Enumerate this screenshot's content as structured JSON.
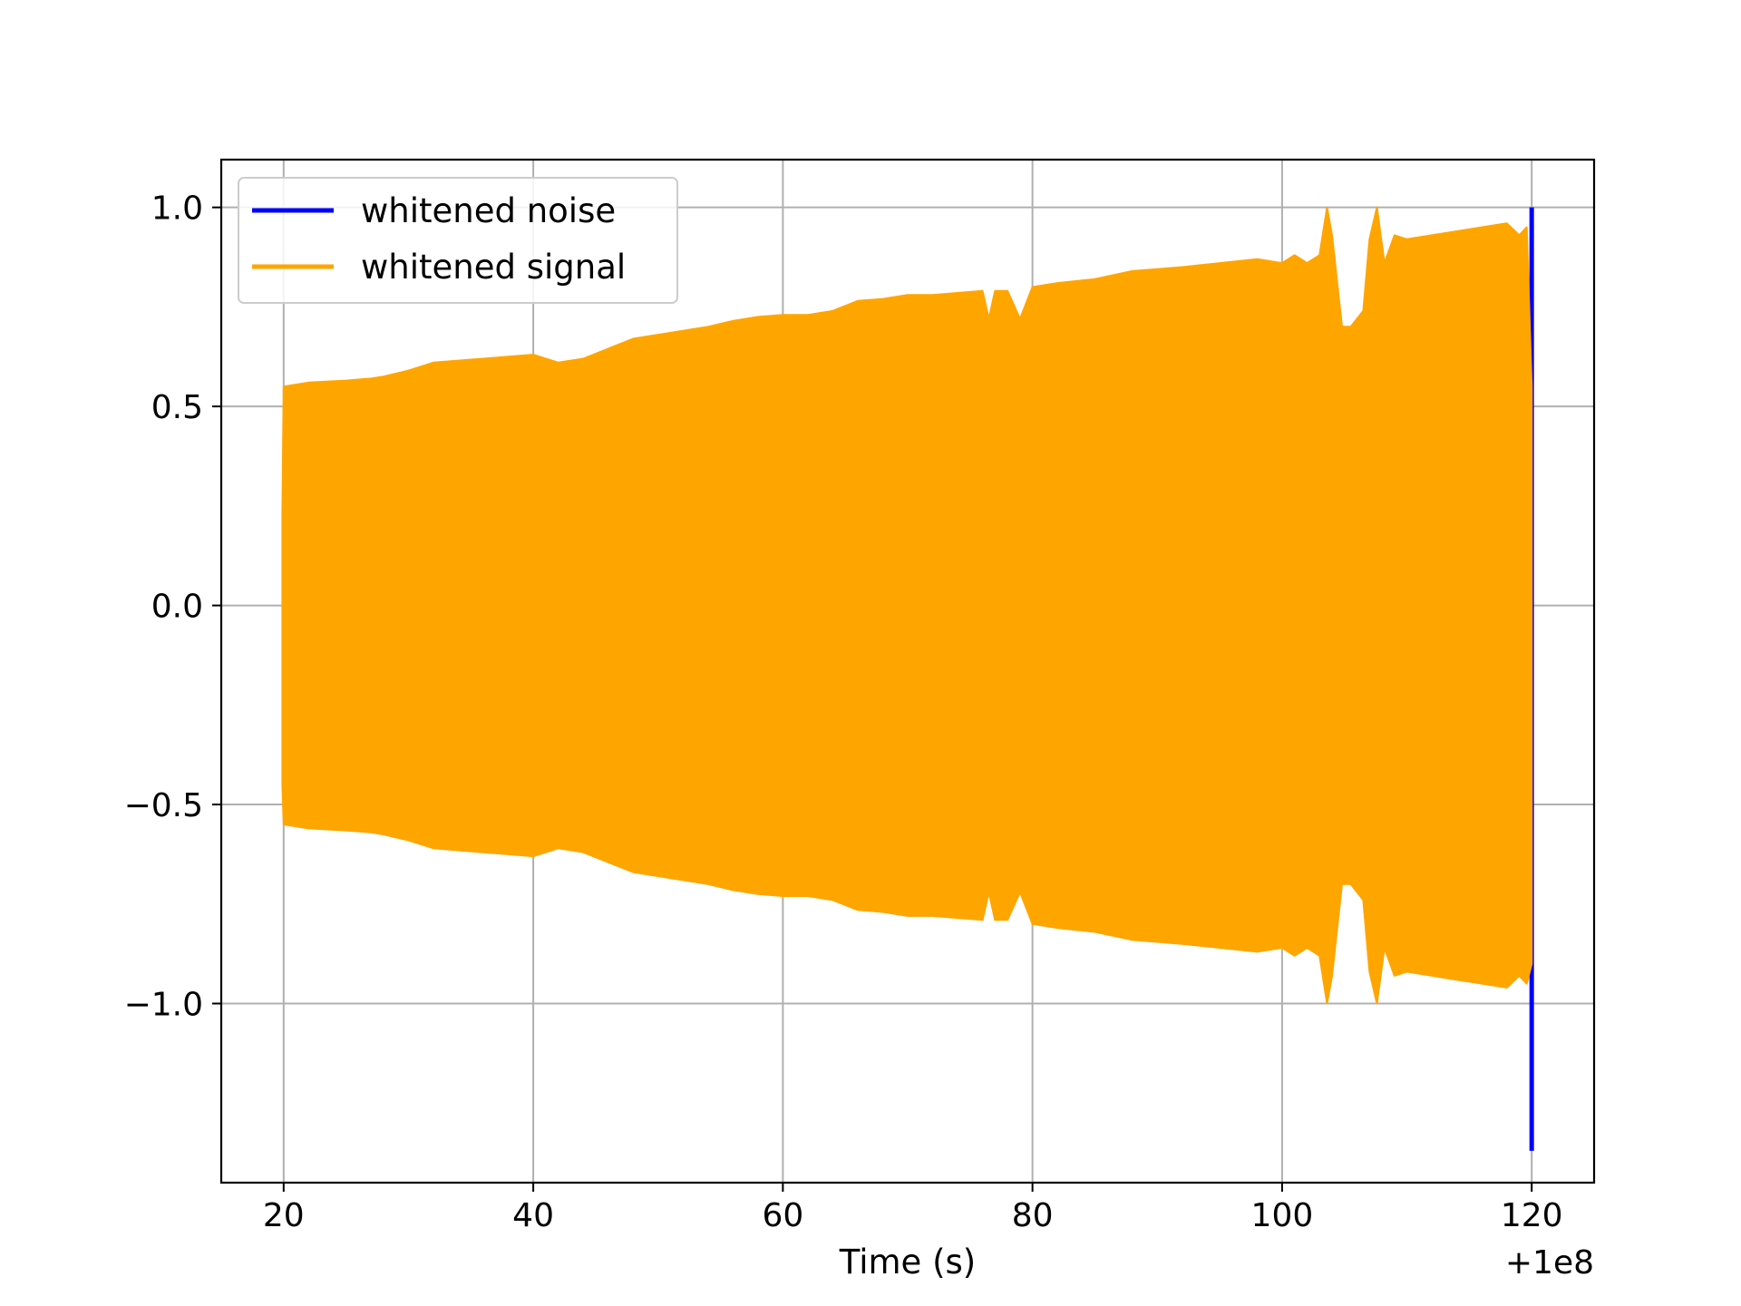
{
  "chart_data": {
    "type": "line",
    "xlabel": "Time (s)",
    "ylabel": "",
    "x_offset_label": "+1e8",
    "xlim": [
      15,
      125
    ],
    "ylim": [
      -1.45,
      1.12
    ],
    "x_ticks": [
      20,
      40,
      60,
      80,
      100,
      120
    ],
    "x_tick_labels": [
      "20",
      "40",
      "60",
      "80",
      "100",
      "120"
    ],
    "y_ticks": [
      1.0,
      0.5,
      0.0,
      -0.5,
      -1.0
    ],
    "y_tick_labels": [
      "1.0",
      "0.5",
      "0.0",
      "−0.5",
      "−1.0"
    ],
    "grid": true,
    "legend_position": "upper-left",
    "series": [
      {
        "name": "whitened noise",
        "color": "#0000ff",
        "segments": [
          {
            "x": 120.0,
            "y_min": -1.37,
            "y_max": 1.0
          }
        ]
      },
      {
        "name": "whitened signal",
        "color": "#ffa500",
        "x": [
          19.9,
          20,
          22,
          25,
          27,
          28,
          30,
          32,
          34,
          36,
          38,
          40,
          42,
          44,
          46,
          48,
          50,
          52,
          54,
          56,
          58,
          60,
          62,
          64,
          66,
          68,
          70,
          72,
          74,
          76,
          76.5,
          77,
          78,
          79,
          80,
          82,
          85,
          88,
          90,
          92,
          95,
          98,
          100,
          101,
          102,
          103,
          103.6,
          104,
          104.8,
          105.5,
          106.5,
          107,
          107.6,
          108.2,
          109,
          110,
          112,
          114,
          116,
          118,
          119,
          119.6,
          120.0
        ],
        "upper": [
          0.23,
          0.55,
          0.56,
          0.565,
          0.57,
          0.575,
          0.59,
          0.61,
          0.615,
          0.62,
          0.625,
          0.63,
          0.61,
          0.62,
          0.645,
          0.67,
          0.68,
          0.69,
          0.7,
          0.715,
          0.725,
          0.73,
          0.73,
          0.74,
          0.765,
          0.77,
          0.78,
          0.78,
          0.785,
          0.79,
          0.72,
          0.79,
          0.79,
          0.72,
          0.8,
          0.81,
          0.82,
          0.84,
          0.845,
          0.85,
          0.86,
          0.87,
          0.86,
          0.88,
          0.86,
          0.88,
          1.0,
          0.93,
          0.7,
          0.7,
          0.74,
          0.92,
          1.0,
          0.86,
          0.93,
          0.92,
          0.93,
          0.94,
          0.95,
          0.96,
          0.93,
          0.95,
          0.55
        ],
        "lower": [
          -0.45,
          -0.55,
          -0.56,
          -0.565,
          -0.57,
          -0.575,
          -0.59,
          -0.61,
          -0.615,
          -0.62,
          -0.625,
          -0.63,
          -0.61,
          -0.62,
          -0.645,
          -0.67,
          -0.68,
          -0.69,
          -0.7,
          -0.715,
          -0.725,
          -0.73,
          -0.73,
          -0.74,
          -0.765,
          -0.77,
          -0.78,
          -0.78,
          -0.785,
          -0.79,
          -0.72,
          -0.79,
          -0.79,
          -0.72,
          -0.8,
          -0.81,
          -0.82,
          -0.84,
          -0.845,
          -0.85,
          -0.86,
          -0.87,
          -0.86,
          -0.88,
          -0.86,
          -0.88,
          -1.0,
          -0.93,
          -0.7,
          -0.7,
          -0.74,
          -0.92,
          -1.0,
          -0.86,
          -0.93,
          -0.92,
          -0.93,
          -0.94,
          -0.95,
          -0.96,
          -0.93,
          -0.95,
          -0.9
        ]
      }
    ]
  }
}
